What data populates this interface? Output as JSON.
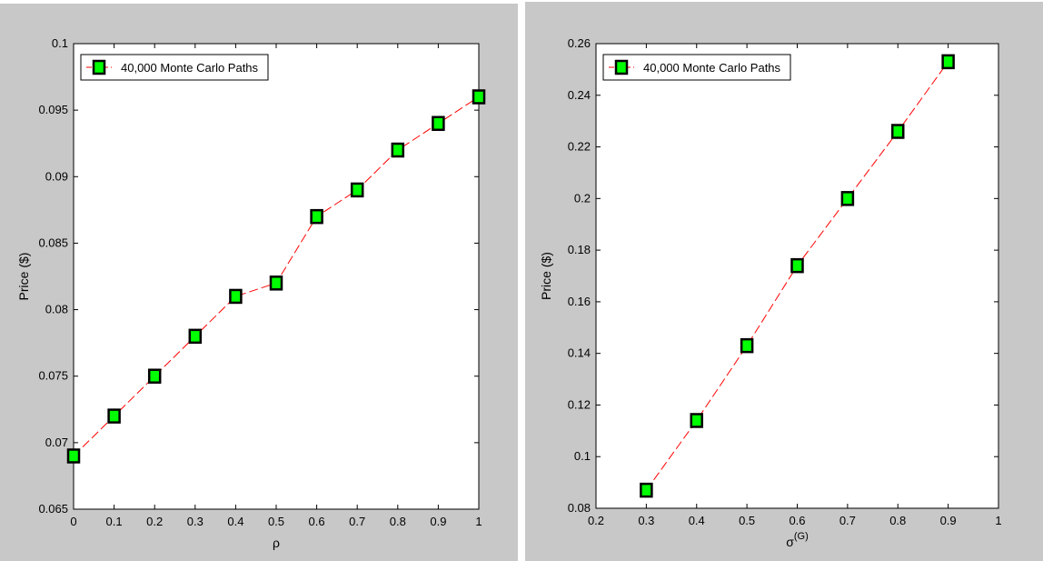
{
  "colors": {
    "figure_bg": "#c8c8c8",
    "axes_bg": "#ffffff",
    "line": "#ff0000",
    "marker_fill": "#00ff00",
    "marker_edge": "#000000"
  },
  "chart_data": [
    {
      "type": "line",
      "xlabel": "ρ",
      "ylabel": "Price ($)",
      "xlim": [
        0,
        1
      ],
      "ylim": [
        0.065,
        0.1
      ],
      "xticks": [
        0,
        0.1,
        0.2,
        0.3,
        0.4,
        0.5,
        0.6,
        0.7,
        0.8,
        0.9,
        1
      ],
      "xtick_labels": [
        "0",
        "0.1",
        "0.2",
        "0.3",
        "0.4",
        "0.5",
        "0.6",
        "0.7",
        "0.8",
        "0.9",
        "1"
      ],
      "yticks": [
        0.065,
        0.07,
        0.075,
        0.08,
        0.085,
        0.09,
        0.095,
        0.1
      ],
      "ytick_labels": [
        "0.065",
        "0.07",
        "0.075",
        "0.08",
        "0.085",
        "0.09",
        "0.095",
        "0.1"
      ],
      "grid": false,
      "legend_position": "top-left",
      "series": [
        {
          "name": "40,000 Monte Carlo Paths",
          "x": [
            0,
            0.1,
            0.2,
            0.3,
            0.4,
            0.5,
            0.6,
            0.7,
            0.8,
            0.9,
            1
          ],
          "y": [
            0.069,
            0.072,
            0.075,
            0.078,
            0.081,
            0.082,
            0.087,
            0.089,
            0.092,
            0.094,
            0.096
          ]
        }
      ]
    },
    {
      "type": "line",
      "xlabel": "σ",
      "xlabel_sup": "(G)",
      "ylabel": "Price ($)",
      "xlim": [
        0.2,
        1
      ],
      "ylim": [
        0.08,
        0.26
      ],
      "xticks": [
        0.2,
        0.3,
        0.4,
        0.5,
        0.6,
        0.7,
        0.8,
        0.9,
        1
      ],
      "xtick_labels": [
        "0.2",
        "0.3",
        "0.4",
        "0.5",
        "0.6",
        "0.7",
        "0.8",
        "0.9",
        "1"
      ],
      "yticks": [
        0.08,
        0.1,
        0.12,
        0.14,
        0.16,
        0.18,
        0.2,
        0.22,
        0.24,
        0.26
      ],
      "ytick_labels": [
        "0.08",
        "0.1",
        "0.12",
        "0.14",
        "0.16",
        "0.18",
        "0.2",
        "0.22",
        "0.24",
        "0.26"
      ],
      "grid": false,
      "legend_position": "top-left",
      "series": [
        {
          "name": "40,000 Monte Carlo Paths",
          "x": [
            0.3,
            0.4,
            0.5,
            0.6,
            0.7,
            0.8,
            0.9
          ],
          "y": [
            0.087,
            0.114,
            0.143,
            0.174,
            0.2,
            0.226,
            0.253
          ]
        }
      ]
    }
  ]
}
